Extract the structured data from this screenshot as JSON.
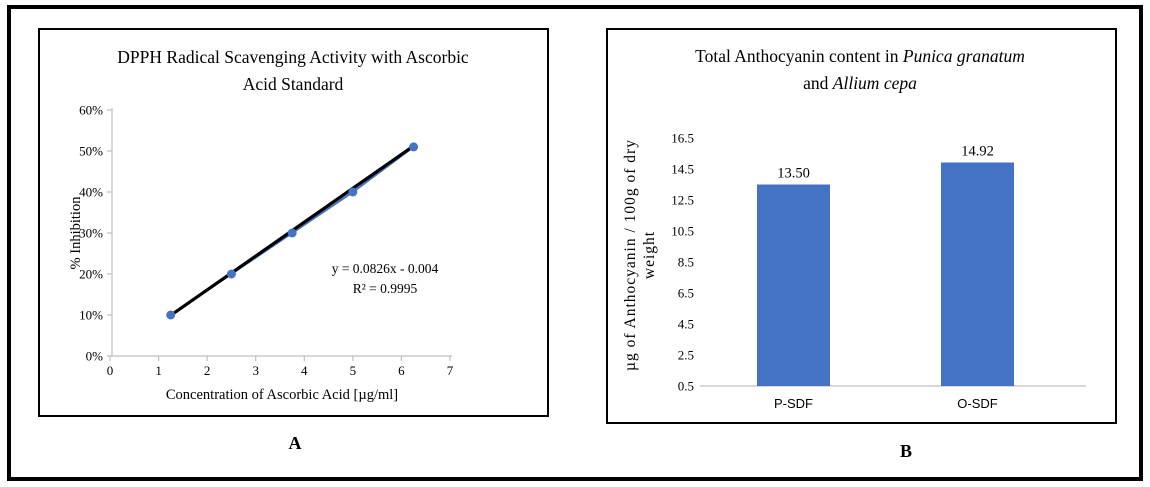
{
  "panels": {
    "a_label": "A",
    "b_label": "B"
  },
  "colors": {
    "series_blue": "#4472C4",
    "trendline_black": "#000000",
    "axis_gray": "#BFBFBF",
    "text_black": "#000000"
  },
  "chart_data": [
    {
      "id": "dpph-scatter",
      "type": "scatter",
      "title_lines": [
        "DPPH Radical Scavenging Activity with Ascorbic",
        "Acid Standard"
      ],
      "xlabel": "Concentration of Ascorbic Acid [µg/ml]",
      "ylabel": "% Inhibition",
      "x": [
        1.25,
        2.5,
        3.75,
        5,
        6.25
      ],
      "y_percent": [
        10,
        20,
        30,
        40,
        51
      ],
      "xlim": [
        0,
        7
      ],
      "x_ticks": [
        "0",
        "1",
        "2",
        "3",
        "4",
        "5",
        "6",
        "7"
      ],
      "ylim_percent": [
        0,
        60
      ],
      "y_ticks": [
        "0%",
        "10%",
        "20%",
        "30%",
        "40%",
        "50%",
        "60%"
      ],
      "y_tick_step_percent": 10,
      "trendline": {
        "equation": "y = 0.0826x - 0.004",
        "r_squared": "R² = 0.9995",
        "slope": 0.0826,
        "intercept": -0.004
      },
      "grid": false,
      "legend": "none"
    },
    {
      "id": "anthocyanin-bar",
      "type": "bar",
      "title_line1_segments": [
        {
          "text": "Total Anthocyanin content in ",
          "italic": false
        },
        {
          "text": "Punica granatum",
          "italic": true
        }
      ],
      "title_line2_segments": [
        {
          "text": "and ",
          "italic": false
        },
        {
          "text": "Allium cepa",
          "italic": true
        }
      ],
      "ylabel_lines": [
        "µg of Anthocyanin / 100g of dry",
        "weight"
      ],
      "categories": [
        "P-SDF",
        "O-SDF"
      ],
      "values": [
        13.5,
        14.92
      ],
      "value_labels": [
        "13.50",
        "14.92"
      ],
      "ylim": [
        0.5,
        16.5
      ],
      "y_ticks": [
        "0.5",
        "2.5",
        "4.5",
        "6.5",
        "8.5",
        "10.5",
        "12.5",
        "14.5",
        "16.5"
      ],
      "y_tick_values": [
        0.5,
        2.5,
        4.5,
        6.5,
        8.5,
        10.5,
        12.5,
        14.5,
        16.5
      ],
      "grid": false,
      "legend": "none"
    }
  ]
}
